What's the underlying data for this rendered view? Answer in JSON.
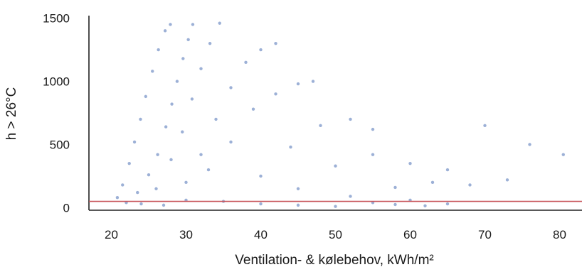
{
  "chart_data": {
    "type": "scatter",
    "title": "",
    "xlabel": "Ventilation- & kølebehov, kWh/m²",
    "ylabel": "h > 26°C",
    "xlim": [
      17,
      83
    ],
    "ylim": [
      -20,
      1520
    ],
    "x_ticks": [
      20,
      30,
      40,
      50,
      60,
      70,
      80
    ],
    "y_ticks": [
      0,
      500,
      1000,
      1500
    ],
    "grid": false,
    "legend": "none",
    "marker_color": "#4a6fb5",
    "threshold_line": {
      "y": 50,
      "color": "#c8545a"
    },
    "series": [
      {
        "values_note": "",
        "points": [
          [
            20.8,
            80
          ],
          [
            21.5,
            180
          ],
          [
            22.4,
            350
          ],
          [
            23.1,
            520
          ],
          [
            23.9,
            700
          ],
          [
            24.6,
            880
          ],
          [
            25.5,
            1080
          ],
          [
            26.3,
            1250
          ],
          [
            27.2,
            1400
          ],
          [
            27.9,
            1450
          ],
          [
            22.0,
            40
          ],
          [
            23.5,
            120
          ],
          [
            25.0,
            260
          ],
          [
            26.2,
            420
          ],
          [
            27.3,
            640
          ],
          [
            28.1,
            820
          ],
          [
            28.8,
            1000
          ],
          [
            29.6,
            1180
          ],
          [
            30.3,
            1330
          ],
          [
            30.9,
            1450
          ],
          [
            24.0,
            30
          ],
          [
            26.0,
            150
          ],
          [
            28.0,
            380
          ],
          [
            29.5,
            600
          ],
          [
            30.8,
            860
          ],
          [
            32.0,
            1100
          ],
          [
            33.2,
            1300
          ],
          [
            34.5,
            1460
          ],
          [
            27.0,
            20
          ],
          [
            30.0,
            200
          ],
          [
            32.0,
            420
          ],
          [
            34.0,
            700
          ],
          [
            36.0,
            950
          ],
          [
            38.0,
            1150
          ],
          [
            40.0,
            1250
          ],
          [
            42.0,
            1300
          ],
          [
            30.0,
            60
          ],
          [
            33.0,
            300
          ],
          [
            36.0,
            520
          ],
          [
            39.0,
            780
          ],
          [
            42.0,
            900
          ],
          [
            45.0,
            980
          ],
          [
            47.0,
            1000
          ],
          [
            35.0,
            50
          ],
          [
            40.0,
            250
          ],
          [
            44.0,
            480
          ],
          [
            48.0,
            650
          ],
          [
            52.0,
            700
          ],
          [
            55.0,
            620
          ],
          [
            40.0,
            30
          ],
          [
            45.0,
            150
          ],
          [
            50.0,
            330
          ],
          [
            55.0,
            420
          ],
          [
            60.0,
            350
          ],
          [
            65.0,
            300
          ],
          [
            70.0,
            650
          ],
          [
            76.0,
            500
          ],
          [
            80.5,
            420
          ],
          [
            45.0,
            20
          ],
          [
            52.0,
            90
          ],
          [
            58.0,
            160
          ],
          [
            63.0,
            200
          ],
          [
            68.0,
            180
          ],
          [
            73.0,
            220
          ],
          [
            50.0,
            10
          ],
          [
            55.0,
            40
          ],
          [
            60.0,
            60
          ],
          [
            65.0,
            30
          ],
          [
            62.0,
            15
          ],
          [
            58.0,
            25
          ]
        ]
      }
    ]
  }
}
